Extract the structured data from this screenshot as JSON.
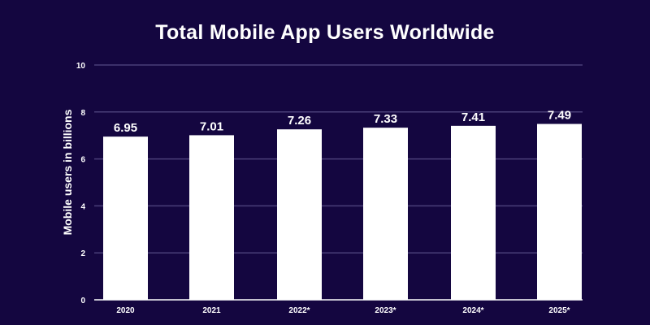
{
  "chart_data": {
    "type": "bar",
    "title": "Total Mobile App Users Worldwide",
    "xlabel": "",
    "ylabel": "Mobile users in billions",
    "ylim": [
      0,
      10
    ],
    "yticks": [
      0,
      2,
      4,
      6,
      8,
      10
    ],
    "grid": true,
    "categories": [
      "2020",
      "2021",
      "2022*",
      "2023*",
      "2024*",
      "2025*"
    ],
    "values": [
      6.95,
      7.01,
      7.26,
      7.33,
      7.41,
      7.49
    ],
    "data_labels": [
      "6.95",
      "7.01",
      "7.26",
      "7.33",
      "7.41",
      "7.49"
    ],
    "colors": {
      "background": "#140640",
      "bar": "#ffffff",
      "grid": "#4a3f78",
      "text": "#ffffff"
    }
  }
}
